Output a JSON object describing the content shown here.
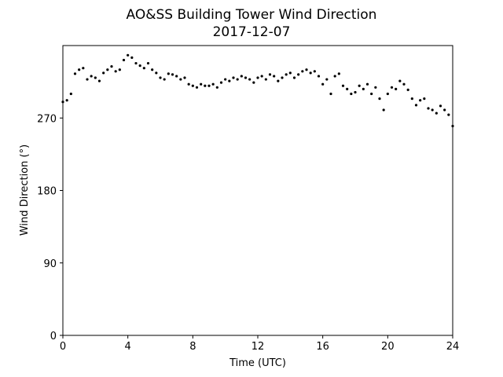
{
  "chart_data": {
    "type": "scatter",
    "title": "AO&SS Building Tower Wind Direction",
    "subtitle": "2017-12-07",
    "xlabel": "Time (UTC)",
    "ylabel": "Wind Direction (°)",
    "xlim": [
      0,
      24
    ],
    "ylim": [
      0,
      360
    ],
    "xticks": [
      0,
      4,
      8,
      12,
      16,
      20,
      24
    ],
    "yticks": [
      0,
      90,
      180,
      270
    ],
    "grid": false,
    "legend": "none",
    "marker_color": "#000000",
    "series": [
      {
        "x": [
          0.0,
          0.25,
          0.5,
          0.75,
          1.0,
          1.25,
          1.5,
          1.75,
          2.0,
          2.25,
          2.5,
          2.75,
          3.0,
          3.25,
          3.5,
          3.75,
          4.0,
          4.25,
          4.5,
          4.75,
          5.0,
          5.25,
          5.5,
          5.75,
          6.0,
          6.25,
          6.5,
          6.75,
          7.0,
          7.25,
          7.5,
          7.75,
          8.0,
          8.25,
          8.5,
          8.75,
          9.0,
          9.25,
          9.5,
          9.75,
          10.0,
          10.25,
          10.5,
          10.75,
          11.0,
          11.25,
          11.5,
          11.75,
          12.0,
          12.25,
          12.5,
          12.75,
          13.0,
          13.25,
          13.5,
          13.75,
          14.0,
          14.25,
          14.5,
          14.75,
          15.0,
          15.25,
          15.5,
          15.75,
          16.0,
          16.25,
          16.5,
          16.75,
          17.0,
          17.25,
          17.5,
          17.75,
          18.0,
          18.25,
          18.5,
          18.75,
          19.0,
          19.25,
          19.5,
          19.75,
          20.0,
          20.25,
          20.5,
          20.75,
          21.0,
          21.25,
          21.5,
          21.75,
          22.0,
          22.25,
          22.5,
          22.75,
          23.0,
          23.25,
          23.5,
          23.75,
          24.0
        ],
        "y": [
          290,
          292,
          300,
          325,
          330,
          332,
          318,
          322,
          320,
          316,
          326,
          330,
          334,
          328,
          330,
          342,
          348,
          345,
          338,
          335,
          332,
          338,
          330,
          326,
          320,
          318,
          325,
          324,
          322,
          318,
          320,
          312,
          310,
          308,
          312,
          310,
          310,
          312,
          308,
          314,
          318,
          316,
          320,
          318,
          322,
          320,
          318,
          314,
          320,
          322,
          318,
          324,
          322,
          316,
          320,
          324,
          326,
          320,
          324,
          328,
          330,
          326,
          328,
          322,
          312,
          318,
          300,
          322,
          325,
          310,
          306,
          300,
          302,
          310,
          306,
          312,
          300,
          308,
          294,
          280,
          300,
          308,
          306,
          316,
          312,
          305,
          294,
          286,
          292,
          294,
          282,
          280,
          276,
          285,
          280,
          274,
          260
        ]
      }
    ]
  }
}
